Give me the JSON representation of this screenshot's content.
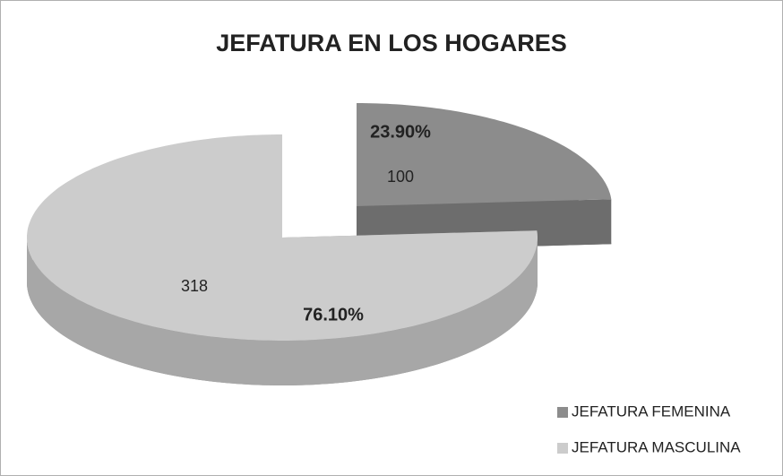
{
  "chart_data": {
    "type": "pie3d",
    "title": "JEFATURA EN LOS HOGARES",
    "categories": [
      "JEFATURA FEMENINA",
      "JEFATURA MASCULINA"
    ],
    "values": [
      100,
      318
    ],
    "percentages": [
      23.9,
      76.1
    ],
    "percent_labels": [
      "23.90%",
      "76.10%"
    ],
    "colors": [
      "#8c8c8c",
      "#cccccc"
    ],
    "legend": "bottom-right"
  }
}
